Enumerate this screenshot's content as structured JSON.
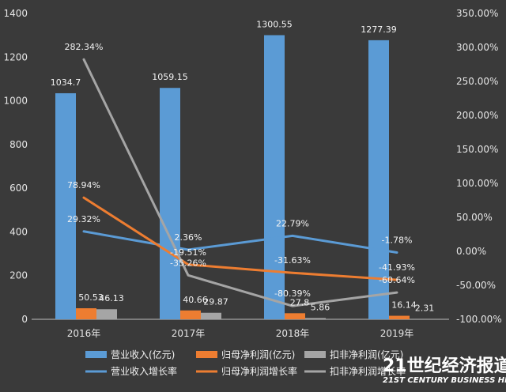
{
  "chart_data": {
    "type": "bar",
    "categories": [
      "2016年",
      "2017年",
      "2018年",
      "2019年"
    ],
    "bar_series": [
      {
        "name": "营业收入(亿元)",
        "values": [
          1034.7,
          1059.15,
          1300.55,
          1277.39
        ],
        "labels": [
          "1034.7",
          "1059.15",
          "1300.55",
          "1277.39"
        ],
        "color": "#5b9bd5"
      },
      {
        "name": "归母净利润(亿元)",
        "values": [
          50.53,
          40.66,
          27.8,
          16.14
        ],
        "labels": [
          "50.53",
          "40.66",
          "27.8",
          "16.14"
        ],
        "color": "#ed7d31"
      },
      {
        "name": "扣非净利润(亿元)",
        "values": [
          46.13,
          29.87,
          5.86,
          2.31
        ],
        "labels": [
          "46.13",
          "29.87",
          "5.86",
          "2.31"
        ],
        "color": "#a5a5a5"
      }
    ],
    "line_series": [
      {
        "name": "营业收入增长率",
        "values": [
          29.32,
          2.36,
          22.79,
          -1.78
        ],
        "labels": [
          "29.32%",
          "2.36%",
          "22.79%",
          "-1.78%"
        ],
        "color": "#5b9bd5"
      },
      {
        "name": "归母净利润增长率",
        "values": [
          78.94,
          -19.51,
          -31.63,
          -41.93
        ],
        "labels": [
          "78.94%",
          "-19.51%",
          "-31.63%",
          "-41.93%"
        ],
        "color": "#ed7d31"
      },
      {
        "name": "扣非净利润增长率",
        "values": [
          282.34,
          -35.26,
          -80.39,
          -60.64
        ],
        "labels": [
          "282.34%",
          "-35.26%",
          "-80.39%",
          "-60.64%"
        ],
        "color": "#a5a5a5"
      }
    ],
    "y_left": {
      "lim": [
        0,
        1400
      ],
      "ticks": [
        0,
        200,
        400,
        600,
        800,
        1000,
        1200,
        1400
      ],
      "tick_labels": [
        "0",
        "200",
        "400",
        "600",
        "800",
        "1000",
        "1200",
        "1400"
      ]
    },
    "y_right": {
      "lim": [
        -100,
        350
      ],
      "ticks": [
        -100,
        -50,
        0,
        50,
        100,
        150,
        200,
        250,
        300,
        350
      ],
      "tick_labels": [
        "-100.00%",
        "-50.00%",
        "0.00%",
        "50.00%",
        "100.00%",
        "150.00%",
        "200.00%",
        "250.00%",
        "300.00%",
        "350.00%"
      ]
    },
    "grid": false,
    "legend_position": "bottom"
  },
  "watermark": {
    "line1": "21世纪经济报道",
    "line2": "21ST CENTURY BUSINESS HERALD"
  }
}
